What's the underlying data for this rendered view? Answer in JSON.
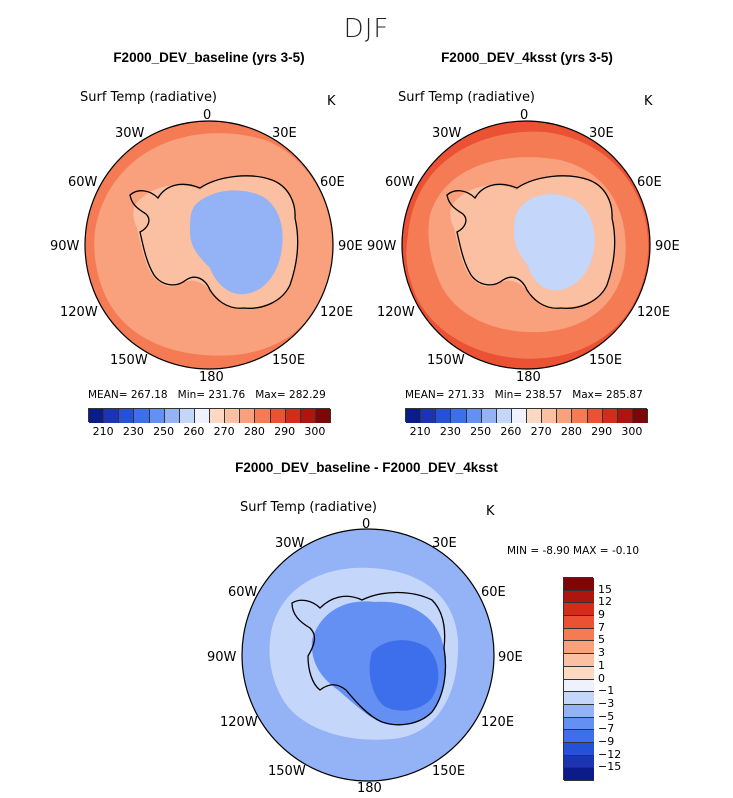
{
  "figure_title": "DJF",
  "chart_data": [
    {
      "type": "heatmap",
      "projection": "south-polar-stereographic",
      "title": "F2000_DEV_baseline (yrs 3-5)",
      "variable": "Surf Temp (radiative)",
      "units": "K",
      "stats": {
        "mean_label": "MEAN=",
        "mean": "267.18",
        "min_label": "Min=",
        "min": "231.76",
        "max_label": "Max=",
        "max": "282.29"
      },
      "longitude_labels": [
        "0",
        "30E",
        "60E",
        "90E",
        "120E",
        "150E",
        "180",
        "150W",
        "120W",
        "90W",
        "60W",
        "30W"
      ],
      "colorbar": {
        "orientation": "horizontal",
        "levels": [
          210,
          230,
          250,
          260,
          270,
          280,
          290,
          300
        ],
        "range": [
          200,
          310
        ]
      },
      "regions": [
        {
          "name": "Southern Ocean outer",
          "value": 277
        },
        {
          "name": "Sea-ice ring",
          "value": 272
        },
        {
          "name": "Antarctic coast",
          "value": 262
        },
        {
          "name": "Antarctic plateau",
          "value": 236
        }
      ]
    },
    {
      "type": "heatmap",
      "projection": "south-polar-stereographic",
      "title": "F2000_DEV_4ksst (yrs 3-5)",
      "variable": "Surf Temp (radiative)",
      "units": "K",
      "stats": {
        "mean_label": "MEAN=",
        "mean": "271.33",
        "min_label": "Min=",
        "min": "238.57",
        "max_label": "Max=",
        "max": "285.87"
      },
      "longitude_labels": [
        "0",
        "30E",
        "60E",
        "90E",
        "120E",
        "150E",
        "180",
        "150W",
        "120W",
        "90W",
        "60W",
        "30W"
      ],
      "colorbar": {
        "orientation": "horizontal",
        "levels": [
          210,
          230,
          250,
          260,
          270,
          280,
          290,
          300
        ],
        "range": [
          200,
          310
        ]
      },
      "regions": [
        {
          "name": "Southern Ocean outer",
          "value": 284
        },
        {
          "name": "Southern Ocean middle",
          "value": 280
        },
        {
          "name": "Sea-ice ring",
          "value": 275
        },
        {
          "name": "Antarctic coast",
          "value": 266
        },
        {
          "name": "Antarctic plateau",
          "value": 244
        }
      ]
    },
    {
      "type": "heatmap",
      "projection": "south-polar-stereographic",
      "title": "F2000_DEV_baseline - F2000_DEV_4ksst",
      "variable": "Surf Temp (radiative)",
      "units": "K",
      "stats": {
        "min_label": "MIN =",
        "min": "-8.90",
        "max_label": "MAX =",
        "max": "-0.10"
      },
      "longitude_labels": [
        "0",
        "30E",
        "60E",
        "90E",
        "120E",
        "150E",
        "180",
        "150W",
        "120W",
        "90W",
        "60W",
        "30W"
      ],
      "colorbar": {
        "orientation": "vertical",
        "levels": [
          "15",
          "12",
          "9",
          "7",
          "5",
          "3",
          "1",
          "0",
          "−1",
          "−3",
          "−5",
          "−7",
          "−9",
          "−12",
          "−15"
        ]
      },
      "regions": [
        {
          "name": "Southern Ocean",
          "value": -4
        },
        {
          "name": "Sea-ice zone",
          "value": -2
        },
        {
          "name": "Antarctic interior",
          "value": -6
        },
        {
          "name": "East Antarctic core",
          "value": -8
        }
      ]
    }
  ],
  "colors": {
    "abs_scale": [
      "#0c1b8a",
      "#1b33b5",
      "#2550d8",
      "#3d6fec",
      "#6390f2",
      "#93b3f6",
      "#c4d6fa",
      "#eef2fc",
      "#fdd9c4",
      "#fbc0a1",
      "#f9a07d",
      "#f57b55",
      "#ea5233",
      "#d22c1a",
      "#ad150e",
      "#7d0606"
    ],
    "diff_scale": [
      "#7d0606",
      "#ad150e",
      "#d22c1a",
      "#ea5233",
      "#f57b55",
      "#f9a07d",
      "#fbc0a1",
      "#fdd9c4",
      "#eef2fc",
      "#c4d6fa",
      "#93b3f6",
      "#6390f2",
      "#3d6fec",
      "#2550d8",
      "#1b33b5",
      "#0c1b8a"
    ]
  }
}
